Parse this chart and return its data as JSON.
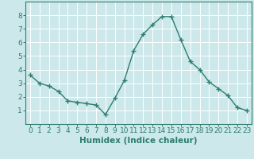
{
  "title": "",
  "xlabel": "Humidex (Indice chaleur)",
  "x": [
    0,
    1,
    2,
    3,
    4,
    5,
    6,
    7,
    8,
    9,
    10,
    11,
    12,
    13,
    14,
    15,
    16,
    17,
    18,
    19,
    20,
    21,
    22,
    23
  ],
  "y": [
    3.6,
    3.0,
    2.8,
    2.4,
    1.7,
    1.6,
    1.5,
    1.4,
    0.7,
    1.9,
    3.2,
    5.4,
    6.6,
    7.3,
    7.9,
    7.9,
    6.2,
    4.6,
    4.0,
    3.1,
    2.6,
    2.1,
    1.2,
    1.0
  ],
  "line_color": "#2e7d6e",
  "marker": "+",
  "marker_size": 4,
  "line_width": 1.0,
  "bg_color": "#cce8eb",
  "grid_color": "#ffffff",
  "axis_color": "#2e7d6e",
  "tick_color": "#2e7d6e",
  "label_color": "#2e7d6e",
  "xlim": [
    -0.5,
    23.5
  ],
  "ylim": [
    0,
    9
  ],
  "yticks": [
    1,
    2,
    3,
    4,
    5,
    6,
    7,
    8
  ],
  "xticks": [
    0,
    1,
    2,
    3,
    4,
    5,
    6,
    7,
    8,
    9,
    10,
    11,
    12,
    13,
    14,
    15,
    16,
    17,
    18,
    19,
    20,
    21,
    22,
    23
  ],
  "tick_fontsize": 6.5,
  "label_fontsize": 7.5
}
